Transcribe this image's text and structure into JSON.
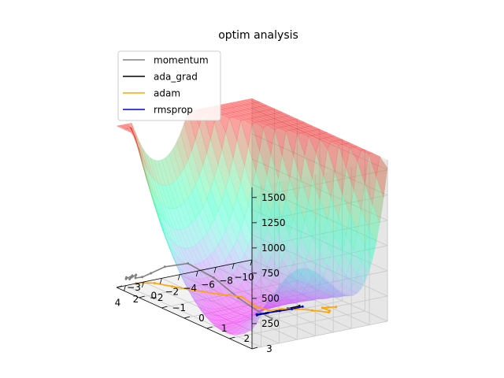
{
  "chart_data": {
    "type": "surface3d",
    "title": "optim analysis",
    "xlabel": "",
    "ylabel": "",
    "zlabel": "",
    "xlim": [
      -10,
      5
    ],
    "ylim": [
      -3,
      3
    ],
    "zlim": [
      0,
      1600
    ],
    "x_ticks": [
      -10,
      -8,
      -6,
      -4,
      -2,
      0,
      2,
      4
    ],
    "x_tick_labels": [
      "−10",
      "−8",
      "−6",
      "−4",
      "−2",
      "0",
      "2",
      "4"
    ],
    "y_ticks": [
      -3,
      -2,
      -1,
      0,
      1,
      2,
      3
    ],
    "y_tick_labels": [
      "−3",
      "−2",
      "−1",
      "0",
      "1",
      "2",
      "3"
    ],
    "z_ticks": [
      250,
      500,
      750,
      1000,
      1250,
      1500
    ],
    "z_tick_labels": [
      "250",
      "500",
      "750",
      "1000",
      "1250",
      "1500"
    ],
    "grid": true,
    "legend_position": "top-left",
    "surface": {
      "x_range": [
        -10,
        5
      ],
      "y_range": [
        -3,
        3
      ],
      "colormap": "rainbow",
      "alpha": 0.4,
      "max_z": 1600
    },
    "series": [
      {
        "name": "momentum",
        "color": "#808080",
        "points": [
          [
            -1.2,
            1.4,
            25
          ],
          [
            -1.0,
            0.9,
            45
          ],
          [
            -0.5,
            0.2,
            120
          ],
          [
            0.0,
            -0.7,
            240
          ],
          [
            0.6,
            -1.6,
            300
          ],
          [
            1.4,
            -2.3,
            210
          ],
          [
            2.2,
            -2.6,
            130
          ],
          [
            2.9,
            -2.7,
            95
          ],
          [
            3.4,
            -2.8,
            85
          ],
          [
            3.6,
            -2.7,
            130
          ],
          [
            3.8,
            -2.9,
            70
          ],
          [
            4.0,
            -2.7,
            130
          ],
          [
            4.2,
            -2.9,
            80
          ],
          [
            4.4,
            -2.8,
            110
          ]
        ]
      },
      {
        "name": "ada_grad",
        "color": "#000000",
        "points": [
          [
            -5.5,
            0.9,
            20
          ],
          [
            -4.2,
            0.9,
            18
          ],
          [
            -3.0,
            0.9,
            17
          ],
          [
            -1.8,
            0.9,
            16
          ],
          [
            -0.8,
            0.9,
            15
          ]
        ]
      },
      {
        "name": "adam",
        "color": "#ffa500",
        "points": [
          [
            -7.8,
            1.6,
            40
          ],
          [
            -7.2,
            1.5,
            38
          ],
          [
            -6.8,
            1.4,
            30
          ],
          [
            -6.6,
            1.8,
            45
          ],
          [
            -6.0,
            2.0,
            60
          ],
          [
            -5.4,
            1.5,
            40
          ],
          [
            -4.6,
            1.1,
            30
          ],
          [
            -3.6,
            0.9,
            25
          ],
          [
            -2.4,
            0.8,
            22
          ],
          [
            -1.4,
            0.6,
            60
          ],
          [
            -0.6,
            0.3,
            140
          ],
          [
            0.2,
            -0.4,
            110
          ],
          [
            0.9,
            -1.2,
            80
          ],
          [
            1.6,
            -1.9,
            60
          ],
          [
            2.3,
            -2.4,
            55
          ],
          [
            3.0,
            -2.6,
            50
          ],
          [
            3.6,
            -2.7,
            45
          ]
        ]
      },
      {
        "name": "rmsprop",
        "color": "#0000cd",
        "points": [
          [
            -5.6,
            1.0,
            22
          ],
          [
            -4.4,
            1.0,
            20
          ],
          [
            -3.2,
            0.95,
            18
          ],
          [
            -2.0,
            0.9,
            17
          ],
          [
            -0.9,
            0.85,
            16
          ]
        ]
      }
    ]
  }
}
